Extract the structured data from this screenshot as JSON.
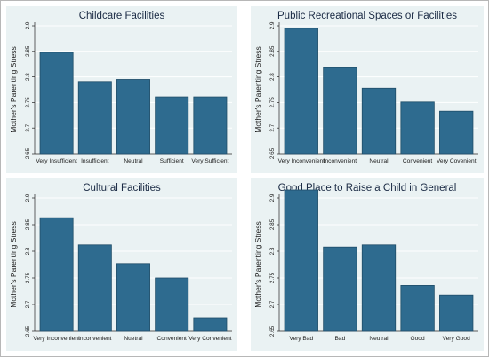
{
  "chart_data": [
    {
      "type": "bar",
      "title": "Childcare Facilities",
      "ylabel": "Mother's Parenting Stress",
      "xlabel": "",
      "ylim": [
        2.65,
        2.9
      ],
      "yticks": [
        "2.65",
        "2.7",
        "2.75",
        "2.8",
        "2.85",
        "2.9"
      ],
      "categories": [
        "Very Insufficient",
        "Insufficient",
        "Neutral",
        "Sufficient",
        "Very Sufficient"
      ],
      "values": [
        2.848,
        2.791,
        2.795,
        2.761,
        2.761
      ]
    },
    {
      "type": "bar",
      "title": "Public Recreational Spaces or Facilities",
      "ylabel": "Mother's Parenting Stress",
      "xlabel": "",
      "ylim": [
        2.65,
        2.9
      ],
      "yticks": [
        "2.65",
        "2.7",
        "2.75",
        "2.8",
        "2.85",
        "2.9"
      ],
      "categories": [
        "Very Inconvenient",
        "Inconvenient",
        "Neutral",
        "Convenient",
        "Very Covenient"
      ],
      "values": [
        2.895,
        2.818,
        2.778,
        2.751,
        2.733
      ]
    },
    {
      "type": "bar",
      "title": "Cultural Facilities",
      "ylabel": "Mother's Parenting Stress",
      "xlabel": "",
      "ylim": [
        2.65,
        2.9
      ],
      "yticks": [
        "2.65",
        "2.7",
        "2.75",
        "2.8",
        "2.85",
        "2.9"
      ],
      "categories": [
        "Very Inconvenient",
        "Inconvenient",
        "Nuetral",
        "Convenient",
        "Very Convenient"
      ],
      "values": [
        2.863,
        2.812,
        2.777,
        2.75,
        2.675
      ]
    },
    {
      "type": "bar",
      "title": "Good Place to Raise a Child in General",
      "ylabel": "Mother's Parenting Stress",
      "xlabel": "",
      "ylim": [
        2.65,
        2.9
      ],
      "yticks": [
        "2.65",
        "2.7",
        "2.75",
        "2.8",
        "2.85",
        "2.9"
      ],
      "categories": [
        "Very Bad",
        "Bad",
        "Neutral",
        "Good",
        "Very Good"
      ],
      "values": [
        2.915,
        2.808,
        2.812,
        2.736,
        2.718
      ]
    }
  ]
}
